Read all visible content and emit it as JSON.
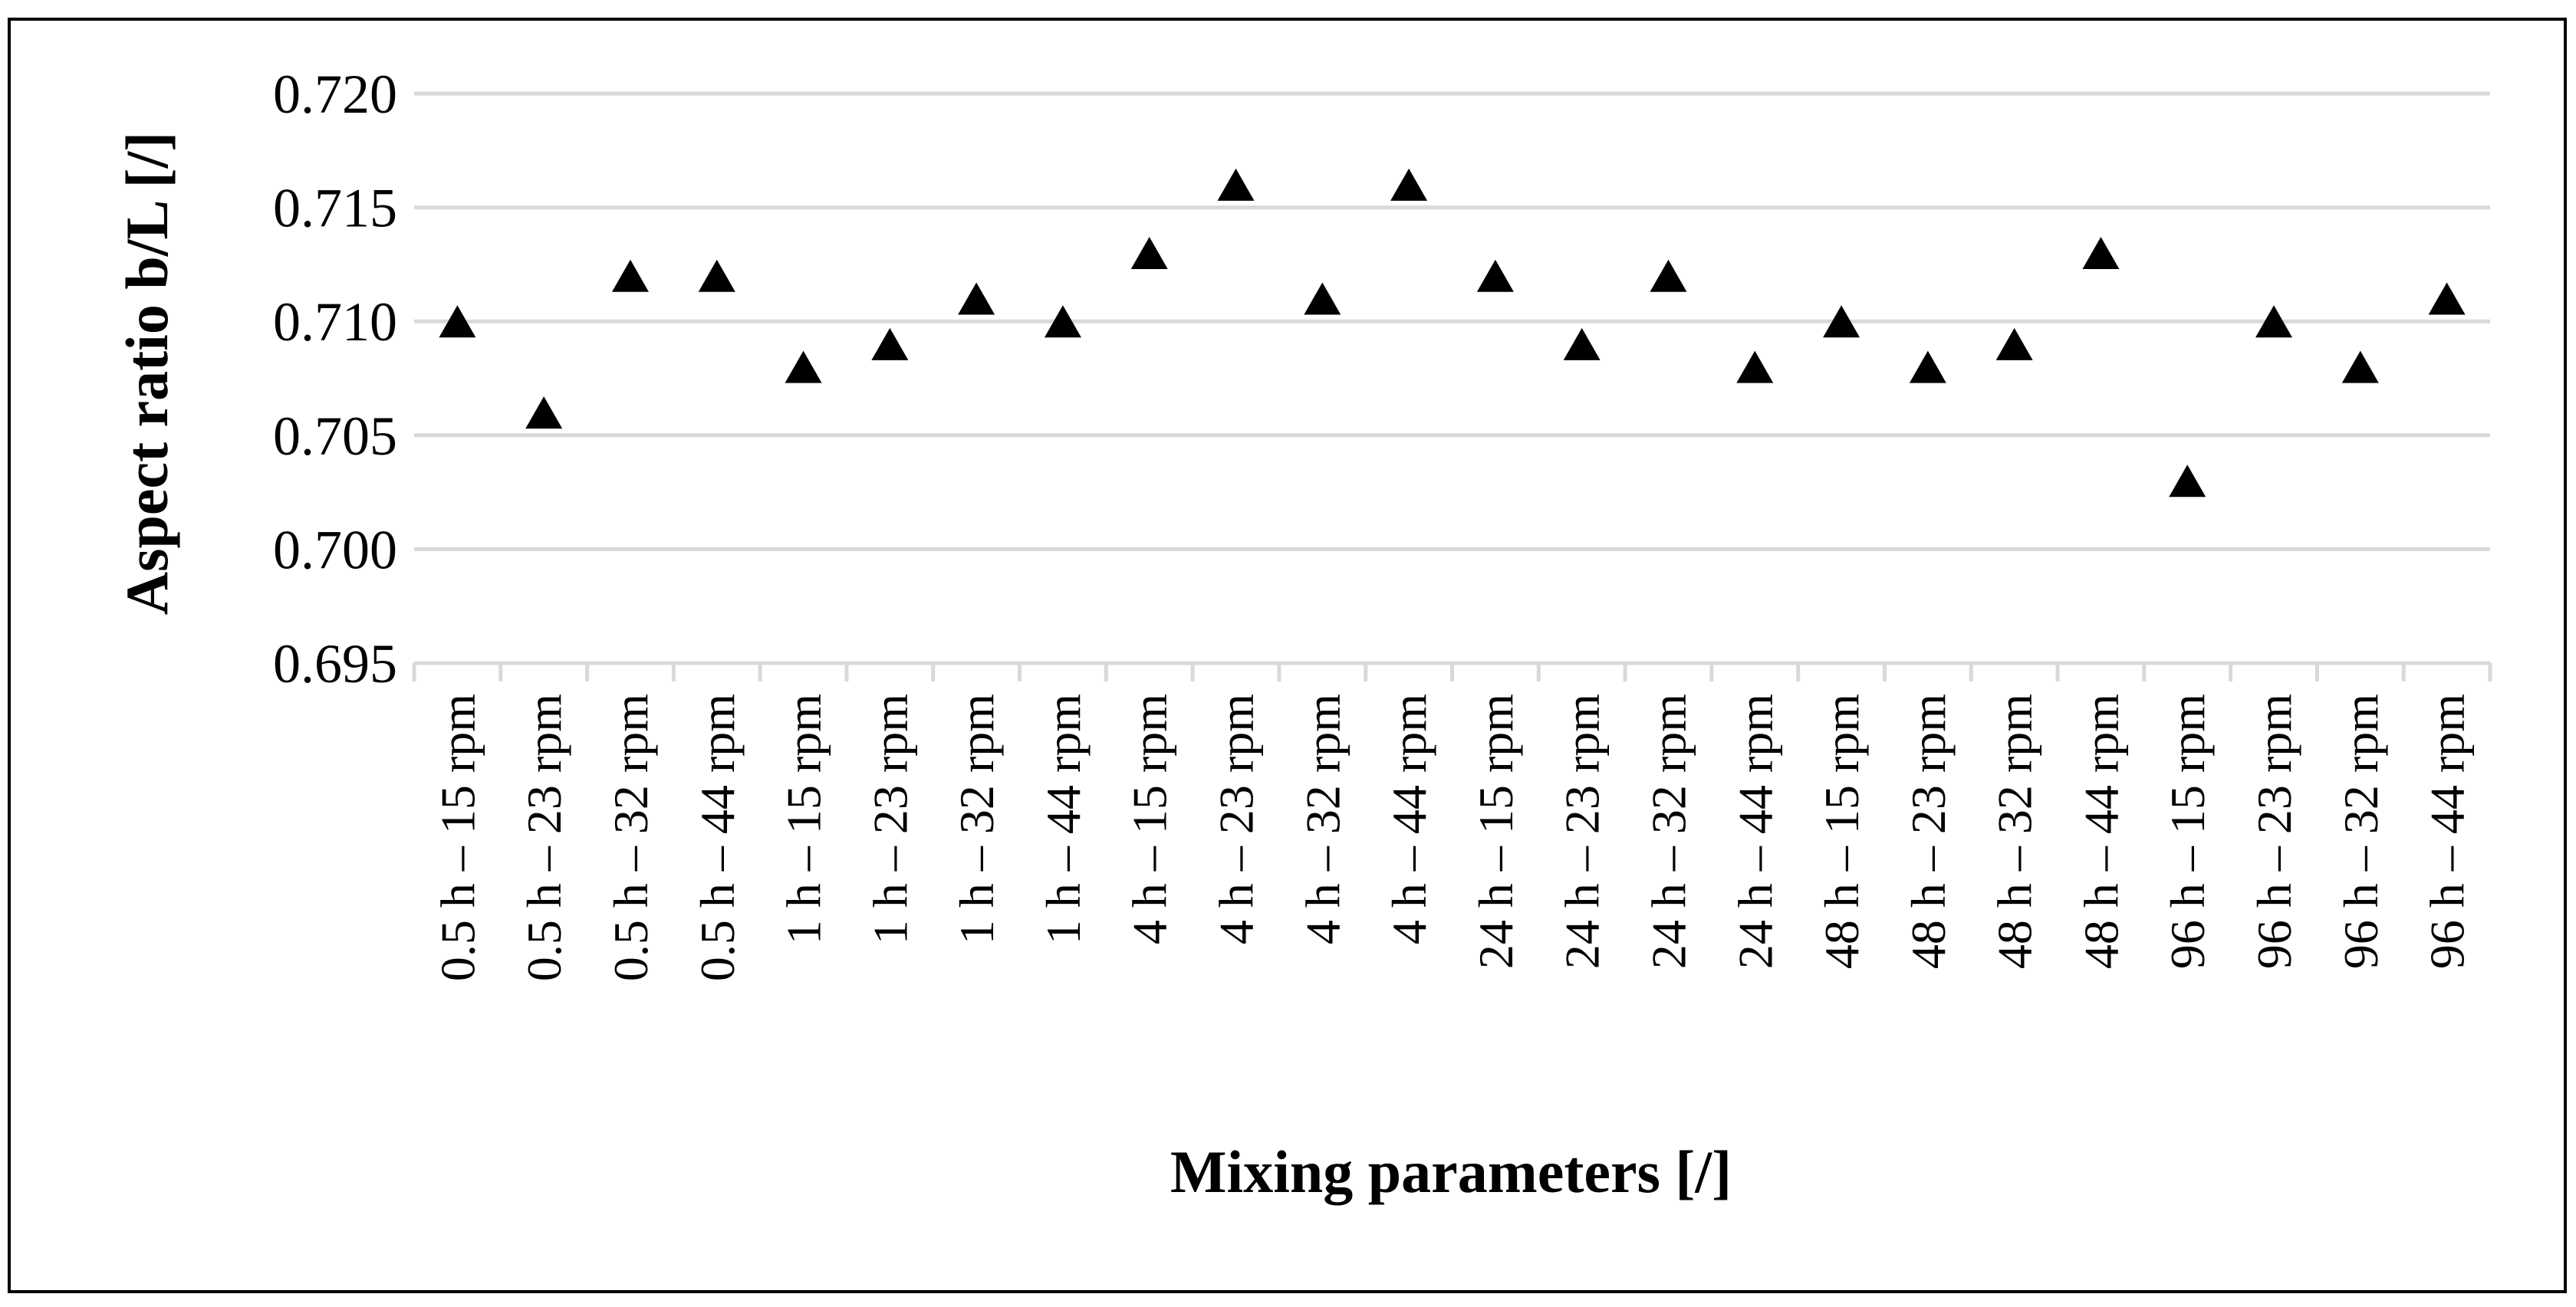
{
  "chart_data": {
    "type": "scatter",
    "marker": "triangle",
    "marker_color": "#000000",
    "grid": true,
    "legend": false,
    "xlabel": "Mixing parameters [/]",
    "ylabel": "Aspect ratio b/L [/]",
    "ylim": [
      0.695,
      0.72
    ],
    "yticks": [
      "0.695",
      "0.700",
      "0.705",
      "0.710",
      "0.715",
      "0.720"
    ],
    "categories": [
      "0.5 h – 15 rpm",
      "0.5 h – 23 rpm",
      "0.5 h – 32 rpm",
      "0.5 h – 44 rpm",
      "1 h – 15 rpm",
      "1 h – 23 rpm",
      "1 h – 32 rpm",
      "1 h – 44 rpm",
      "4 h – 15 rpm",
      "4 h – 23 rpm",
      "4 h – 32 rpm",
      "4 h – 44 rpm",
      "24 h – 15 rpm",
      "24 h – 23 rpm",
      "24 h – 32 rpm",
      "24 h – 44 rpm",
      "48 h – 15 rpm",
      "48 h – 23 rpm",
      "48 h – 32 rpm",
      "48 h – 44 rpm",
      "96 h – 15 rpm",
      "96 h – 23 rpm",
      "96 h – 32 rpm",
      "96 h – 44 rpm"
    ],
    "values": [
      0.71,
      0.706,
      0.712,
      0.712,
      0.708,
      0.709,
      0.711,
      0.71,
      0.713,
      0.716,
      0.711,
      0.716,
      0.712,
      0.709,
      0.712,
      0.708,
      0.71,
      0.708,
      0.709,
      0.713,
      0.703,
      0.71,
      0.708,
      0.711
    ]
  }
}
